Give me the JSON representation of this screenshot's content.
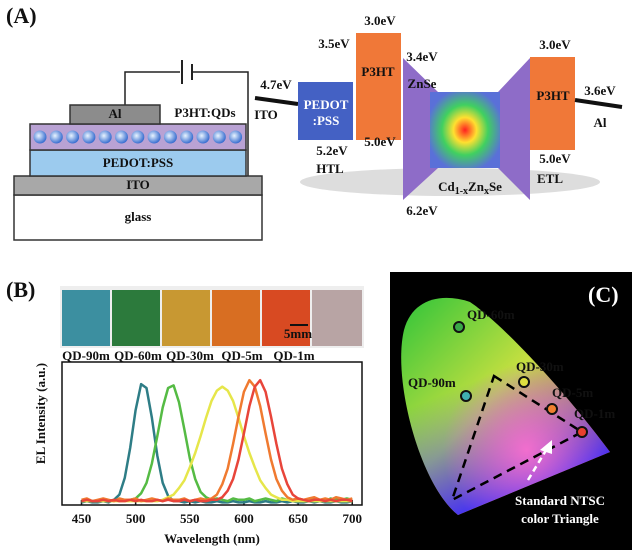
{
  "panel_a": {
    "label": "(A)",
    "device": {
      "al": "Al",
      "active": "P3HT:QDs",
      "pedot": "PEDOT:PSS",
      "ito": "ITO",
      "glass": "glass"
    },
    "energy": {
      "ito_level": "4.7eV",
      "ito": "ITO",
      "pedot_lines": [
        "PEDOT",
        ":PSS"
      ],
      "pedot_lumo": "3.5eV",
      "pedot_homo": "5.2eV",
      "htl": "HTL",
      "p3ht_left_lumo": "3.0eV",
      "p3ht_left": "P3HT",
      "p3ht_left_homo": "5.0eV",
      "znse_cb": "3.4eV",
      "znse": "ZnSe",
      "znse_vb": "6.2eV",
      "core_parts": [
        "Cd",
        "1-x",
        "Zn",
        "x",
        "Se"
      ],
      "p3ht_right_lumo": "3.0eV",
      "p3ht_right": "P3HT",
      "p3ht_right_homo": "5.0eV",
      "etl": "ETL",
      "al_level": "3.6eV",
      "al": "Al"
    }
  },
  "panel_b": {
    "label": "(B)",
    "photos": [
      "QD-90m",
      "QD-60m",
      "QD-30m",
      "QD-5m",
      "QD-1m"
    ],
    "scale_bar": "5mm"
  },
  "chart_data": {
    "type": "line",
    "xlabel": "Wavelength (nm)",
    "ylabel": "EL Intensity (a.u.)",
    "xlim": [
      432,
      709
    ],
    "ylim": [
      0,
      1.1
    ],
    "xticks": [
      450,
      500,
      550,
      600,
      650,
      700
    ],
    "x": [
      450,
      455,
      460,
      465,
      470,
      475,
      480,
      485,
      490,
      495,
      500,
      505,
      510,
      515,
      520,
      525,
      530,
      535,
      540,
      545,
      550,
      555,
      560,
      565,
      570,
      575,
      580,
      585,
      590,
      595,
      600,
      605,
      610,
      615,
      620,
      625,
      630,
      635,
      640,
      645,
      650,
      655,
      660,
      665,
      670,
      675,
      680,
      685,
      690,
      695,
      700
    ],
    "series": [
      {
        "name": "QD-90m",
        "color": "#2e7d86",
        "values": [
          0.02,
          0.03,
          0.02,
          0.02,
          0.03,
          0.02,
          0.04,
          0.08,
          0.21,
          0.44,
          0.73,
          0.93,
          0.9,
          0.67,
          0.38,
          0.17,
          0.07,
          0.03,
          0.03,
          0.02,
          0.03,
          0.02,
          0.03,
          0.02,
          0.02,
          0.03,
          0.02,
          0.02,
          0.03,
          0.02,
          0.02,
          0.03,
          0.02,
          0.02,
          0.03,
          0.02,
          0.02,
          0.03,
          0.02,
          0.03,
          0.02,
          0.02,
          0.03,
          0.02,
          0.03,
          0.02,
          0.02,
          0.03,
          0.02,
          0.02,
          0.03
        ]
      },
      {
        "name": "QD-60m",
        "color": "#55bb44",
        "values": [
          0.03,
          0.04,
          0.03,
          0.03,
          0.04,
          0.03,
          0.04,
          0.03,
          0.04,
          0.04,
          0.05,
          0.09,
          0.17,
          0.32,
          0.53,
          0.75,
          0.9,
          0.92,
          0.79,
          0.58,
          0.36,
          0.2,
          0.1,
          0.06,
          0.04,
          0.05,
          0.04,
          0.03,
          0.05,
          0.04,
          0.04,
          0.05,
          0.03,
          0.04,
          0.05,
          0.04,
          0.03,
          0.05,
          0.04,
          0.04,
          0.05,
          0.03,
          0.04,
          0.05,
          0.04,
          0.03,
          0.05,
          0.04,
          0.04,
          0.05,
          0.04
        ]
      },
      {
        "name": "QD-30m",
        "color": "#e6e64a",
        "values": [
          0.03,
          0.03,
          0.03,
          0.03,
          0.03,
          0.03,
          0.03,
          0.03,
          0.03,
          0.03,
          0.03,
          0.03,
          0.03,
          0.03,
          0.03,
          0.04,
          0.06,
          0.08,
          0.13,
          0.19,
          0.29,
          0.4,
          0.53,
          0.67,
          0.8,
          0.88,
          0.91,
          0.88,
          0.8,
          0.67,
          0.53,
          0.4,
          0.29,
          0.19,
          0.13,
          0.08,
          0.06,
          0.04,
          0.04,
          0.03,
          0.03,
          0.03,
          0.03,
          0.03,
          0.03,
          0.03,
          0.03,
          0.03,
          0.03,
          0.03,
          0.03
        ]
      },
      {
        "name": "QD-5m",
        "color": "#f07a30",
        "values": [
          0.04,
          0.05,
          0.03,
          0.04,
          0.05,
          0.04,
          0.03,
          0.05,
          0.04,
          0.04,
          0.05,
          0.03,
          0.04,
          0.05,
          0.04,
          0.03,
          0.05,
          0.04,
          0.04,
          0.05,
          0.03,
          0.04,
          0.05,
          0.04,
          0.05,
          0.08,
          0.16,
          0.28,
          0.47,
          0.68,
          0.87,
          0.96,
          0.91,
          0.76,
          0.55,
          0.35,
          0.2,
          0.11,
          0.06,
          0.04,
          0.05,
          0.04,
          0.05,
          0.06,
          0.04,
          0.05,
          0.04,
          0.06,
          0.05,
          0.04,
          0.05
        ]
      },
      {
        "name": "QD-1m",
        "color": "#e8453a",
        "values": [
          0.03,
          0.04,
          0.03,
          0.03,
          0.04,
          0.03,
          0.04,
          0.03,
          0.03,
          0.04,
          0.03,
          0.04,
          0.03,
          0.03,
          0.04,
          0.03,
          0.04,
          0.03,
          0.03,
          0.04,
          0.03,
          0.04,
          0.03,
          0.03,
          0.04,
          0.04,
          0.06,
          0.11,
          0.2,
          0.35,
          0.55,
          0.76,
          0.91,
          0.96,
          0.87,
          0.68,
          0.47,
          0.28,
          0.16,
          0.08,
          0.05,
          0.04,
          0.03,
          0.04,
          0.04,
          0.03,
          0.04,
          0.03,
          0.04,
          0.04,
          0.03
        ]
      }
    ]
  },
  "panel_c": {
    "label": "(C)",
    "points": [
      "QD-60m",
      "QD-90m",
      "QD-30m",
      "QD-5m",
      "QD-1m"
    ],
    "triangle_lines": [
      "Standard NTSC",
      "color Triangle"
    ]
  }
}
